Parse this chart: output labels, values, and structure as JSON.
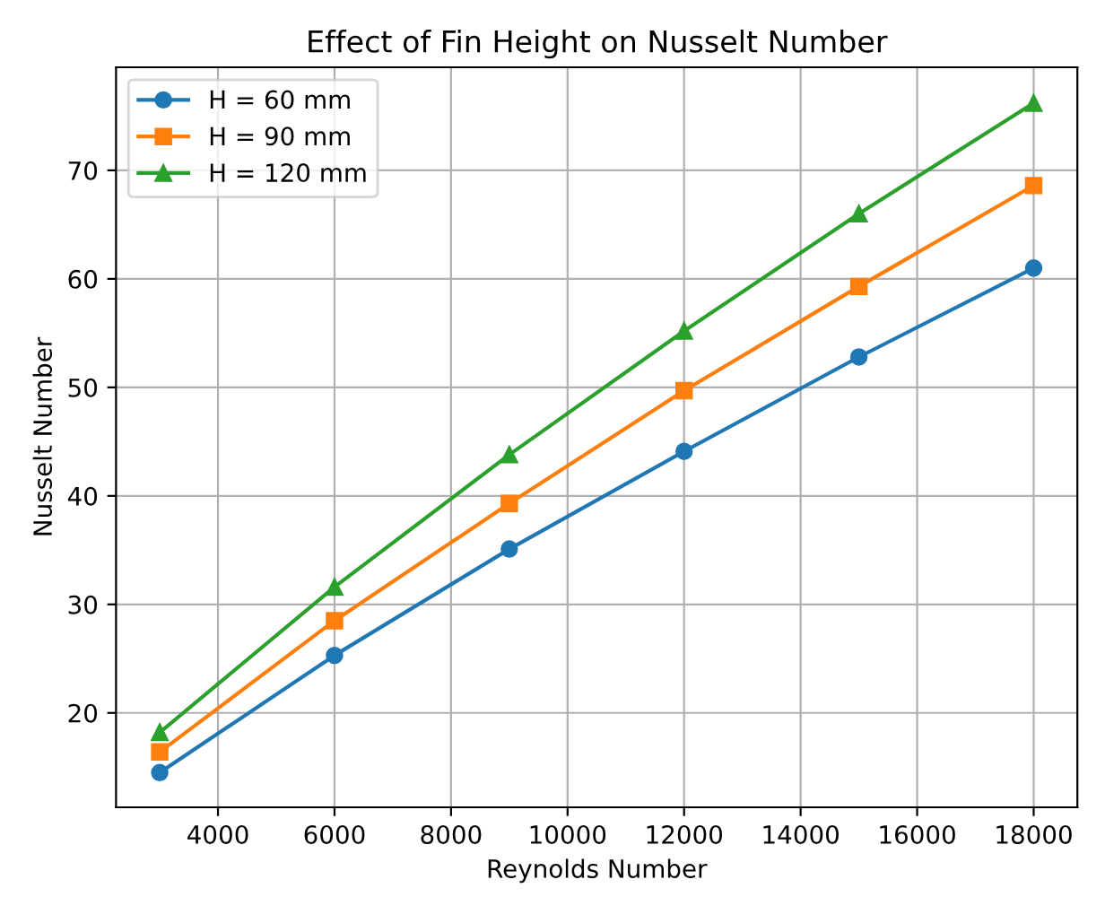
{
  "chart_data": {
    "type": "line",
    "title": "Effect of Fin Height on Nusselt Number",
    "xlabel": "Reynolds Number",
    "ylabel": "Nusselt Number",
    "x": [
      3000,
      6000,
      9000,
      12000,
      15000,
      18000
    ],
    "series": [
      {
        "name": "H = 60 mm",
        "color": "#1f77b4",
        "marker": "circle",
        "values": [
          14.5,
          25.3,
          35.1,
          44.1,
          52.8,
          61.0
        ]
      },
      {
        "name": "H = 90 mm",
        "color": "#ff7f0e",
        "marker": "square",
        "values": [
          16.4,
          28.5,
          39.3,
          49.7,
          59.3,
          68.6
        ]
      },
      {
        "name": "H = 120 mm",
        "color": "#2ca02c",
        "marker": "triangle",
        "values": [
          18.2,
          31.6,
          43.8,
          55.2,
          66.0,
          76.2
        ]
      }
    ],
    "xlim": [
      2250,
      18750
    ],
    "xticks": [
      4000,
      6000,
      8000,
      10000,
      12000,
      14000,
      16000,
      18000
    ],
    "ylim": [
      11.3,
      79.5
    ],
    "yticks": [
      20,
      30,
      40,
      50,
      60,
      70
    ],
    "grid": true,
    "legend": "top left",
    "line_style": "solid"
  }
}
